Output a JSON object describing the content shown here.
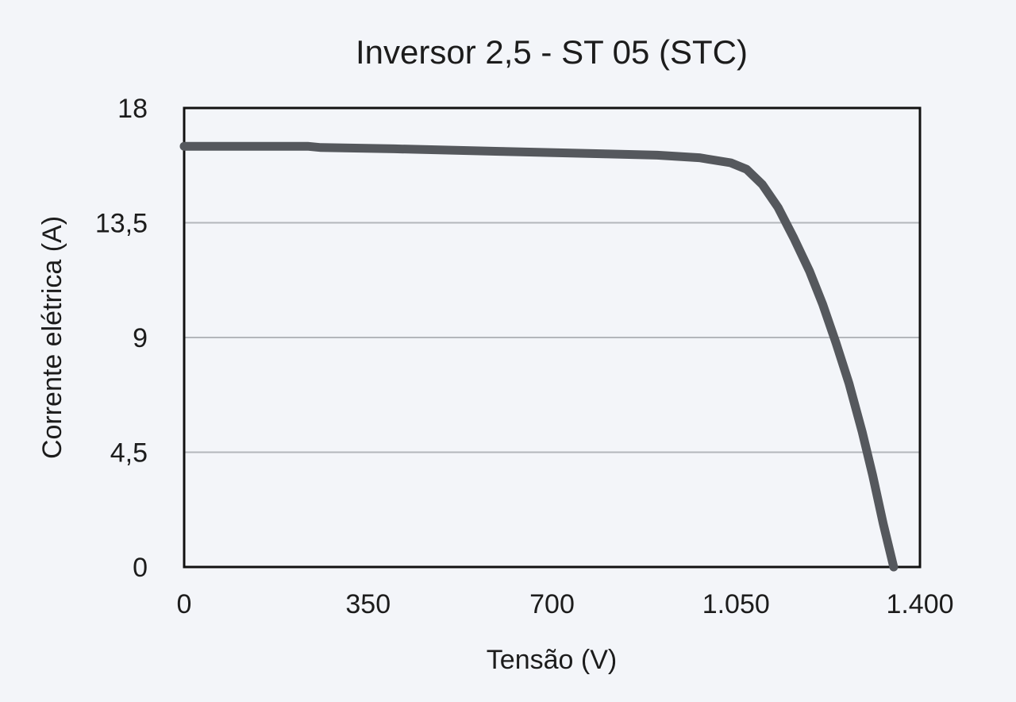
{
  "chart_data": {
    "type": "line",
    "title": "Inversor 2,5 - ST 05 (STC)",
    "xlabel": "Tensão (V)",
    "ylabel": "Corrente elétrica (A)",
    "xlim": [
      0,
      1400
    ],
    "ylim": [
      0,
      18
    ],
    "x_ticks": [
      {
        "value": 0,
        "label": "0"
      },
      {
        "value": 350,
        "label": "350"
      },
      {
        "value": 700,
        "label": "700"
      },
      {
        "value": 1050,
        "label": "1.050"
      },
      {
        "value": 1400,
        "label": "1.400"
      }
    ],
    "y_ticks": [
      {
        "value": 0,
        "label": "0"
      },
      {
        "value": 4.5,
        "label": "4,5"
      },
      {
        "value": 9,
        "label": "9"
      },
      {
        "value": 13.5,
        "label": "13,5"
      },
      {
        "value": 18,
        "label": "18"
      }
    ],
    "grid": "horizontal",
    "series": [
      {
        "color": "#55585d",
        "x": [
          0,
          235,
          260,
          400,
          600,
          800,
          900,
          980,
          1040,
          1070,
          1100,
          1130,
          1160,
          1190,
          1215,
          1240,
          1265,
          1290,
          1310,
          1330,
          1350
        ],
        "y": [
          16.5,
          16.5,
          16.45,
          16.4,
          16.3,
          16.2,
          16.15,
          16.05,
          15.85,
          15.6,
          15.0,
          14.1,
          12.9,
          11.6,
          10.3,
          8.8,
          7.2,
          5.3,
          3.6,
          1.7,
          0
        ]
      }
    ]
  }
}
